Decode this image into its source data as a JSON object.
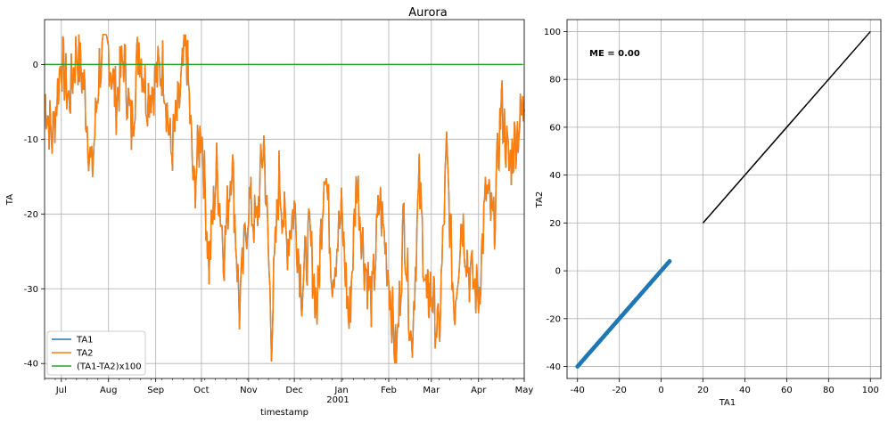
{
  "title": "Aurora",
  "colors": {
    "ta1": "#1f77b4",
    "ta2": "#ff7f0e",
    "diff": "#2ca02c",
    "grid": "#b0b0b0",
    "axis": "#000000"
  },
  "chart_data": [
    {
      "type": "line",
      "title": "Aurora",
      "xlabel": "timestamp",
      "ylabel": "TA",
      "x_year_label": "2001",
      "x_ticks": [
        "Jul",
        "Aug",
        "Sep",
        "Oct",
        "Nov",
        "Dec",
        "Jan",
        "Feb",
        "Mar",
        "Apr",
        "May"
      ],
      "ylim": [
        -42,
        6
      ],
      "y_ticks": [
        0,
        -10,
        -20,
        -30,
        -40
      ],
      "grid": true,
      "legend": {
        "position": "lower-left",
        "entries": [
          "TA1",
          "TA2",
          "(TA1-TA2)x100"
        ]
      },
      "x_start": "2000-06-20",
      "x_end": "2001-05-01",
      "series": [
        {
          "name": "TA2",
          "color": "#ff7f0e",
          "x": [
            "2000-06-20",
            "2000-06-25",
            "2000-07-01",
            "2000-07-06",
            "2000-07-11",
            "2000-07-16",
            "2000-07-21",
            "2000-07-26",
            "2000-08-01",
            "2000-08-06",
            "2000-08-11",
            "2000-08-16",
            "2000-08-21",
            "2000-08-26",
            "2000-09-01",
            "2000-09-06",
            "2000-09-11",
            "2000-09-16",
            "2000-09-21",
            "2000-09-26",
            "2000-10-01",
            "2000-10-06",
            "2000-10-11",
            "2000-10-16",
            "2000-10-21",
            "2000-10-26",
            "2000-11-01",
            "2000-11-06",
            "2000-11-11",
            "2000-11-16",
            "2000-11-21",
            "2000-11-26",
            "2000-12-01",
            "2000-12-06",
            "2000-12-11",
            "2000-12-16",
            "2000-12-21",
            "2000-12-26",
            "2001-01-01",
            "2001-01-06",
            "2001-01-11",
            "2001-01-16",
            "2001-01-21",
            "2001-01-26",
            "2001-02-01",
            "2001-02-06",
            "2001-02-11",
            "2001-02-16",
            "2001-02-21",
            "2001-02-26",
            "2001-03-01",
            "2001-03-06",
            "2001-03-11",
            "2001-03-16",
            "2001-03-21",
            "2001-03-26",
            "2001-04-01",
            "2001-04-06",
            "2001-04-11",
            "2001-04-16",
            "2001-04-21",
            "2001-04-26",
            "2001-05-01"
          ],
          "values": [
            -4,
            -10,
            1,
            -5,
            2,
            -3,
            -15,
            0,
            2,
            -5,
            1,
            -9,
            3,
            -4,
            -2,
            0,
            -12,
            -6,
            3,
            -17,
            -8,
            -27,
            -14,
            -25,
            -12,
            -33,
            -18,
            -22,
            -10,
            -36,
            -15,
            -24,
            -19,
            -30,
            -23,
            -33,
            -12,
            -28,
            -20,
            -35,
            -15,
            -26,
            -32,
            -18,
            -28,
            -40,
            -20,
            -38,
            -16,
            -32,
            -30,
            -37,
            -12,
            -33,
            -20,
            -28,
            -31,
            -17,
            -22,
            -5,
            -14,
            -9,
            -6
          ]
        },
        {
          "name": "TA1",
          "color": "#1f77b4",
          "same_as": "TA2"
        },
        {
          "name": "(TA1-TA2)x100",
          "color": "#2ca02c",
          "x": [
            "2000-06-20",
            "2001-04-30"
          ],
          "values": [
            0,
            0
          ]
        }
      ]
    },
    {
      "type": "scatter",
      "xlabel": "TA1",
      "ylabel": "TA2",
      "xlim": [
        -45,
        105
      ],
      "ylim": [
        -45,
        105
      ],
      "x_ticks": [
        -40,
        -20,
        0,
        20,
        40,
        60,
        80,
        100
      ],
      "y_ticks": [
        100,
        80,
        60,
        40,
        20,
        0,
        -20,
        -40
      ],
      "grid": true,
      "annotation": "ME = 0.00",
      "points": {
        "x_range": [
          -40,
          4
        ],
        "relation": "TA2 = TA1",
        "color": "#1f77b4"
      },
      "reference_line": {
        "x": [
          20,
          100
        ],
        "y": [
          20,
          100
        ],
        "color": "#000000"
      }
    }
  ]
}
